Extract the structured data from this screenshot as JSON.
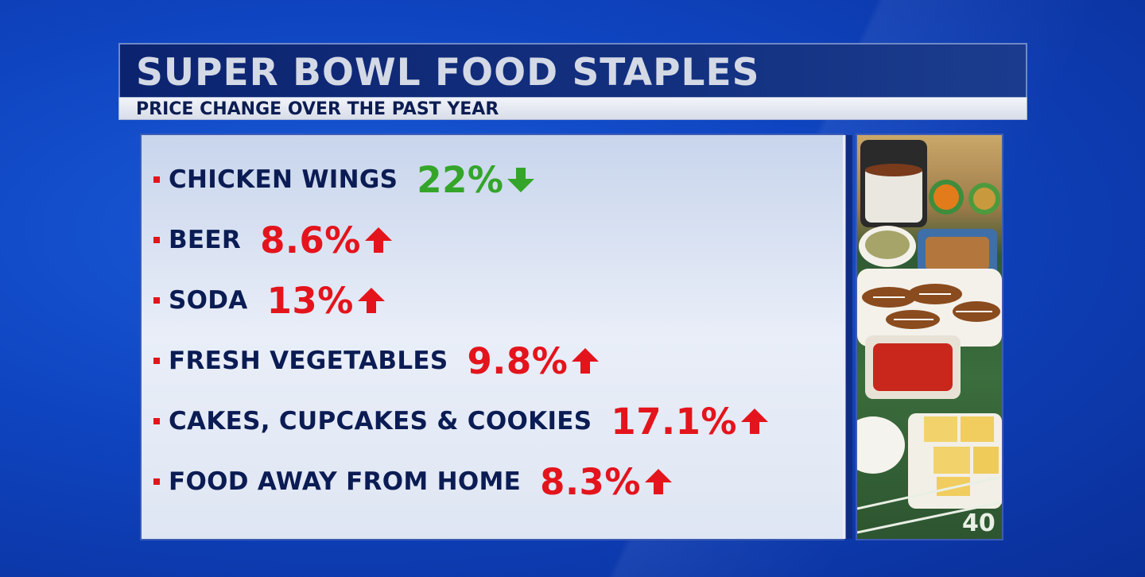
{
  "title": "SUPER BOWL FOOD STAPLES",
  "subtitle": "PRICE CHANGE OVER THE PAST YEAR",
  "items": [
    {
      "label": "CHICKEN WINGS",
      "value": "22%",
      "direction": "down",
      "color": "#34a52a"
    },
    {
      "label": "BEER",
      "value": "8.6%",
      "direction": "up",
      "color": "#e4141c"
    },
    {
      "label": "SODA",
      "value": "13%",
      "direction": "up",
      "color": "#e4141c"
    },
    {
      "label": "FRESH VEGETABLES",
      "value": "9.8%",
      "direction": "up",
      "color": "#e4141c"
    },
    {
      "label": "CAKES, CUPCAKES & COOKIES",
      "value": "17.1%",
      "direction": "up",
      "color": "#e4141c"
    },
    {
      "label": "FOOD AWAY FROM HOME",
      "value": "8.3%",
      "direction": "up",
      "color": "#e4141c"
    }
  ],
  "icons": {
    "up": "arrow-up-icon",
    "down": "arrow-down-icon"
  },
  "photo_subject": "game-day-food-spread-image"
}
